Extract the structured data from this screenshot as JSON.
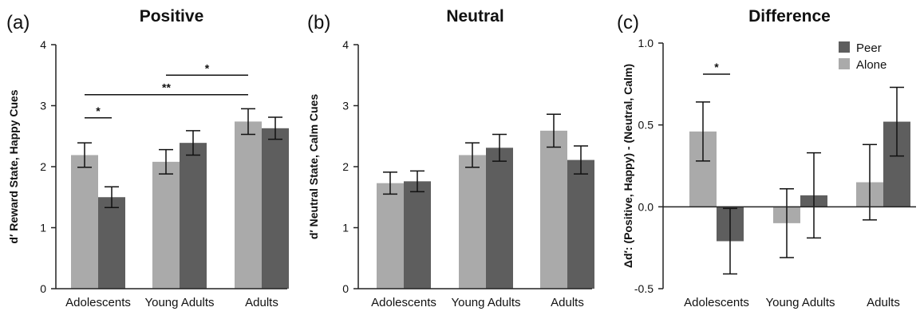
{
  "colors": {
    "alone": "#aaaaaa",
    "peer": "#5e5e5e"
  },
  "chart_data": [
    {
      "type": "bar",
      "panel_label": "(a)",
      "title": "Positive",
      "ylabel": "d′ Reward State, Happy Cues",
      "ylim": [
        0,
        4
      ],
      "yticks": [
        "0",
        "1",
        "2",
        "3",
        "4"
      ],
      "categories": [
        "Adolescents",
        "Young Adults",
        "Adults"
      ],
      "series": [
        {
          "key": "alone",
          "values": [
            2.19,
            2.08,
            2.74
          ],
          "errors": [
            0.2,
            0.2,
            0.21
          ]
        },
        {
          "key": "peer",
          "values": [
            1.5,
            2.39,
            2.63
          ],
          "errors": [
            0.17,
            0.2,
            0.18
          ]
        }
      ],
      "annotations": [
        {
          "text": "*",
          "from": [
            0,
            0
          ],
          "to": [
            0,
            1
          ],
          "y": 2.8
        },
        {
          "text": "**",
          "from": [
            0,
            0
          ],
          "to": [
            2,
            0
          ],
          "y": 3.18
        },
        {
          "text": "*",
          "from": [
            1,
            0
          ],
          "to": [
            2,
            0
          ],
          "y": 3.5
        }
      ]
    },
    {
      "type": "bar",
      "panel_label": "(b)",
      "title": "Neutral",
      "ylabel": "d′ Neutral State, Calm Cues",
      "ylim": [
        0,
        4
      ],
      "yticks": [
        "0",
        "1",
        "2",
        "3",
        "4"
      ],
      "categories": [
        "Adolescents",
        "Young Adults",
        "Adults"
      ],
      "series": [
        {
          "key": "alone",
          "values": [
            1.73,
            2.19,
            2.59
          ],
          "errors": [
            0.18,
            0.2,
            0.27
          ]
        },
        {
          "key": "peer",
          "values": [
            1.76,
            2.31,
            2.11
          ],
          "errors": [
            0.17,
            0.22,
            0.23
          ]
        }
      ],
      "annotations": []
    },
    {
      "type": "bar",
      "panel_label": "(c)",
      "title": "Difference",
      "ylabel": "Δd′: (Positive, Happy) - (Neutral, Calm)",
      "ylim": [
        -0.5,
        1.0
      ],
      "yticks": [
        "-0.5",
        "0.0",
        "0.5",
        "1.0"
      ],
      "categories": [
        "Adolescents",
        "Young Adults",
        "Adults"
      ],
      "legend": {
        "position": "top-right",
        "entries": [
          {
            "key": "peer",
            "label": "Peer"
          },
          {
            "key": "alone",
            "label": "Alone"
          }
        ]
      },
      "series": [
        {
          "key": "alone",
          "values": [
            0.46,
            -0.1,
            0.15
          ],
          "errors": [
            0.18,
            0.21,
            0.23
          ]
        },
        {
          "key": "peer",
          "values": [
            -0.21,
            0.07,
            0.52
          ],
          "errors": [
            0.2,
            0.26,
            0.21
          ]
        }
      ],
      "annotations": [
        {
          "text": "*",
          "from": [
            0,
            0
          ],
          "to": [
            0,
            1
          ],
          "y": 0.81
        }
      ]
    }
  ]
}
